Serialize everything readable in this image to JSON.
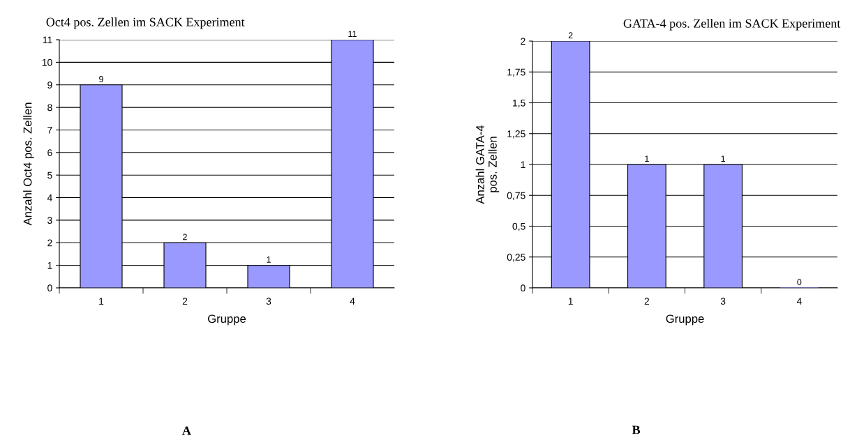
{
  "chart_data": [
    {
      "type": "bar",
      "title": "Oct4 pos. Zellen im SACK Experiment",
      "xlabel": "Gruppe",
      "ylabel": "Anzahl Oct4 pos. Zellen",
      "categories": [
        "1",
        "2",
        "3",
        "4"
      ],
      "values": [
        9,
        2,
        1,
        11
      ],
      "color": "#9999ff",
      "ylim": [
        0,
        11
      ],
      "yticks": [
        0,
        1,
        2,
        3,
        4,
        5,
        6,
        7,
        8,
        9,
        10,
        11
      ],
      "grid": "y",
      "data_labels": true,
      "annotations": [
        "A"
      ]
    },
    {
      "type": "bar",
      "title": "GATA-4 pos. Zellen im SACK Experiment",
      "xlabel": "Gruppe",
      "ylabel": "Anzahl GATA-4\npos. Zellen",
      "categories": [
        "1",
        "2",
        "3",
        "4"
      ],
      "values": [
        2,
        1,
        1,
        0
      ],
      "color": "#9999ff",
      "ylim": [
        0,
        2
      ],
      "yticks": [
        0,
        {
          "value": 0.25,
          "label": "0,25"
        },
        {
          "value": 0.5,
          "label": "0,5"
        },
        {
          "value": 0.75,
          "label": "0,75"
        },
        1,
        {
          "value": 1.25,
          "label": "1,25"
        },
        {
          "value": 1.5,
          "label": "1,5"
        },
        {
          "value": 1.75,
          "label": "1,75"
        },
        2
      ],
      "grid": "y",
      "data_labels": true,
      "annotations": [
        "B"
      ]
    }
  ]
}
